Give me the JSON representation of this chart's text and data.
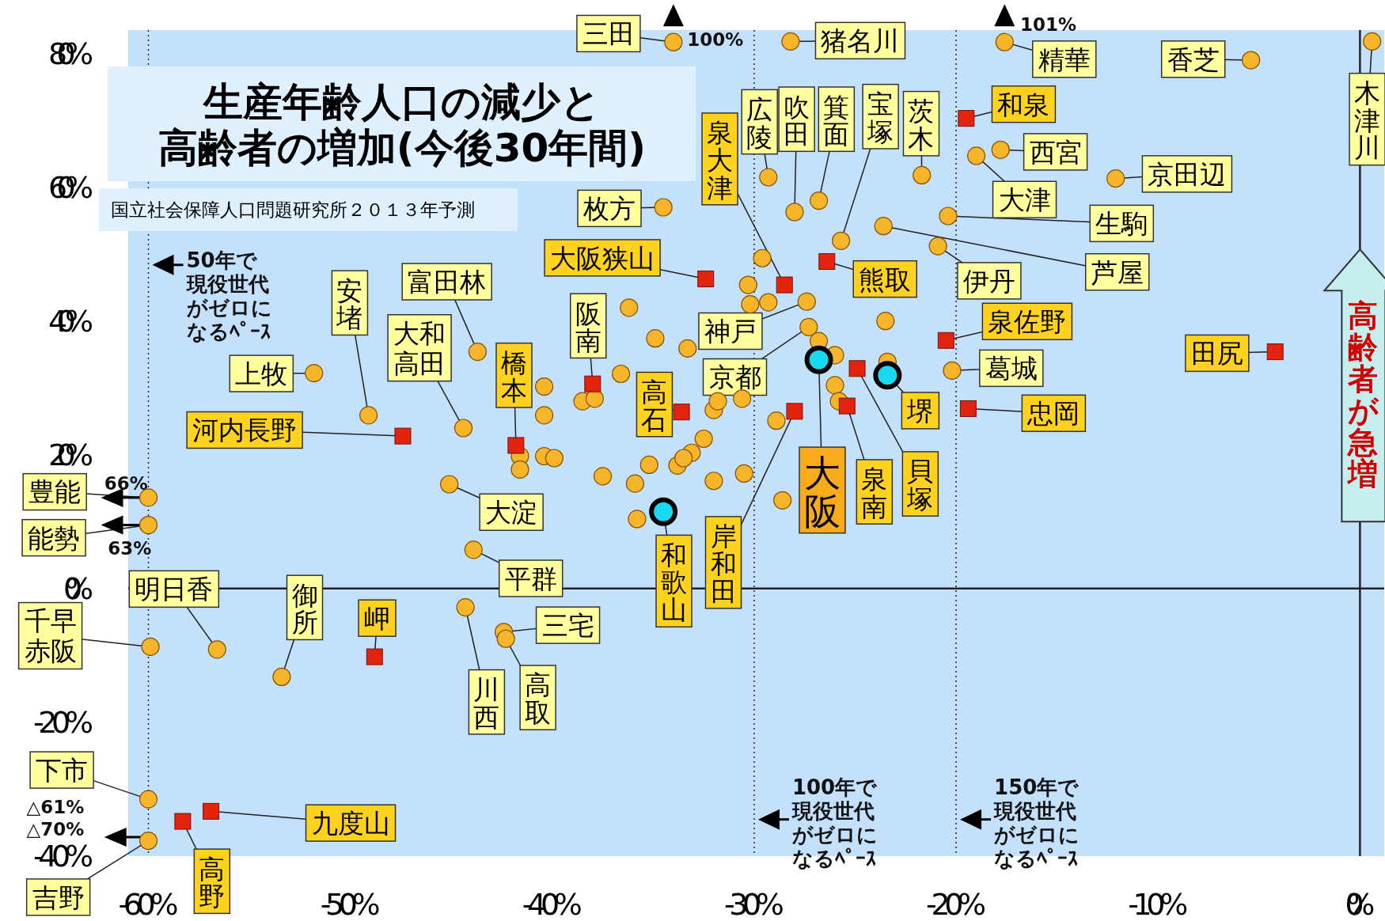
{
  "chart_data": {
    "type": "scatter",
    "title": "生産年齢人口の減少と高齢者の増加(今後30年間)",
    "subtitle": "国立社会保障人口問題研究所２０１３年予測",
    "xlim": [
      -61,
      1.2
    ],
    "ylim": [
      -40,
      83.5
    ],
    "xticks": [
      {
        "value": -60,
        "label": "-60%"
      },
      {
        "value": -50,
        "label": "-50%"
      },
      {
        "value": -40,
        "label": "-40%"
      },
      {
        "value": -30,
        "label": "-30%"
      },
      {
        "value": -20,
        "label": "-20%"
      },
      {
        "value": -10,
        "label": "-10%"
      },
      {
        "value": 0,
        "label": "0%"
      }
    ],
    "yticks": [
      {
        "value": -40,
        "label": "-40%"
      },
      {
        "value": -20,
        "label": "-20%"
      },
      {
        "value": 0,
        "label": "0%"
      },
      {
        "value": 20,
        "label": "20%"
      },
      {
        "value": 40,
        "label": "40%"
      },
      {
        "value": 60,
        "label": "60%"
      },
      {
        "value": 80,
        "label": "80%"
      }
    ],
    "grid": false,
    "series": [
      {
        "color": "#f7b52c",
        "marker": "circle",
        "x": [
          -34.0,
          -28.2,
          -17.6,
          -5.4,
          0.6,
          -29.3,
          -28.0,
          -26.8,
          -25.7,
          -21.7,
          -17.8,
          -19.0,
          -12.1,
          -20.4,
          -23.6,
          -20.9,
          -34.5,
          -20.2,
          -43.7,
          -49.1,
          -44.4,
          -51.8,
          -27.4,
          -27.3,
          -45.1,
          -60,
          -60,
          -43.9,
          -56.6,
          -53.4,
          -59.9,
          -42.4,
          -42.3,
          -44.3,
          -60,
          -60,
          -40.4,
          -40.4,
          -40.4,
          -39.9,
          -41.6,
          -41.6,
          -37.5,
          -35.9,
          -35.2,
          -33.8,
          -33.1,
          -32.5,
          -32.0,
          -30.5,
          -32.0,
          -31.8,
          -30.6,
          -30.3,
          -30.2,
          -29.6,
          -29.3,
          -26.8,
          -26.0,
          -26.0,
          -25.8,
          -28.9,
          -28.6,
          -35.8,
          -36.2,
          -34.9,
          -36.6,
          -38.5,
          -37.9,
          -33.3,
          -23.5,
          -23.4,
          -33.5
        ],
        "values": [
          81.7,
          81.8,
          81.7,
          79.0,
          81.8,
          61.5,
          56.3,
          58.0,
          52.0,
          61.8,
          65.6,
          64.7,
          61.3,
          55.7,
          54.2,
          51.2,
          57.0,
          32.6,
          35.4,
          25.9,
          24.0,
          32.2,
          42.9,
          39.1,
          15.6,
          13.6,
          9.5,
          5.8,
          -9.1,
          -13.2,
          -8.7,
          -6.5,
          -7.5,
          -2.8,
          -31.5,
          -37.7,
          30.2,
          25.9,
          19.8,
          19.5,
          19.8,
          17.8,
          16.8,
          15.7,
          18.5,
          18.4,
          20.3,
          22.4,
          16.1,
          17.2,
          26.7,
          28.0,
          28.4,
          45.4,
          42.5,
          49.4,
          42.8,
          37.0,
          34.9,
          30.4,
          28.0,
          25.1,
          13.2,
          10.4,
          42.0,
          37.4,
          32.1,
          28.0,
          28.4,
          35.9,
          40.0,
          33.9,
          19.5
        ]
      },
      {
        "color": "#e2230e",
        "marker": "square",
        "x": [
          -19.5,
          -28.5,
          -32.4,
          -26.4,
          -20.5,
          -19.4,
          -4.2,
          -38.0,
          -41.8,
          -33.6,
          -25.4,
          -24.9,
          -28.0,
          -47.4,
          -48.8,
          -56.9,
          -58.3
        ],
        "values": [
          70.3,
          45.4,
          46.3,
          48.9,
          37.1,
          26.9,
          35.4,
          30.6,
          21.4,
          26.4,
          27.3,
          32.9,
          26.5,
          22.8,
          -10.2,
          -33.3,
          -34.8
        ]
      },
      {
        "color": "#19d9f0",
        "marker": "circle",
        "x": [
          -26.8,
          -23.4,
          -34.5
        ],
        "values": [
          34.2,
          31.9,
          11.5
        ]
      }
    ],
    "ref_lines": [
      {
        "axis": "x",
        "value": -60,
        "label": "50年で現役世代がゼロになるﾍﾟｰｽ",
        "line_style": "dotted"
      },
      {
        "axis": "x",
        "value": -30,
        "label": "100年で現役世代がゼロになるﾍﾟｰｽ",
        "line_style": "dotted"
      },
      {
        "axis": "x",
        "value": -20,
        "label": "150年で現役世代がゼロになるﾍﾟｰｽ",
        "line_style": "dotted"
      },
      {
        "axis": "x",
        "value": 0,
        "line_style": "solid"
      },
      {
        "axis": "y",
        "value": 0,
        "line_style": "solid"
      }
    ],
    "annotations": [
      {
        "text": "三田",
        "x": -34.0,
        "y": 81.7
      },
      {
        "text": "猪名川",
        "x": -28.2,
        "y": 81.8
      },
      {
        "text": "精華",
        "x": -17.6,
        "y": 81.7
      },
      {
        "text": "香芝",
        "x": -5.4,
        "y": 79.0
      },
      {
        "text": "木津川",
        "x": 0.6,
        "y": 81.8
      },
      {
        "text": "広陵",
        "x": -29.3,
        "y": 61.5
      },
      {
        "text": "吹田",
        "x": -28.0,
        "y": 56.3
      },
      {
        "text": "箕面",
        "x": -26.8,
        "y": 58.0
      },
      {
        "text": "宝塚",
        "x": -25.7,
        "y": 52.0
      },
      {
        "text": "茨木",
        "x": -21.7,
        "y": 61.8
      },
      {
        "text": "和泉",
        "x": -19.5,
        "y": 70.3
      },
      {
        "text": "西宮",
        "x": -17.8,
        "y": 65.6
      },
      {
        "text": "大津",
        "x": -19.0,
        "y": 64.7
      },
      {
        "text": "京田辺",
        "x": -12.1,
        "y": 61.3
      },
      {
        "text": "生駒",
        "x": -20.4,
        "y": 55.7
      },
      {
        "text": "芦屋",
        "x": -23.6,
        "y": 54.2
      },
      {
        "text": "伊丹",
        "x": -20.9,
        "y": 51.2
      },
      {
        "text": "泉大津",
        "x": -28.5,
        "y": 45.4
      },
      {
        "text": "枚方",
        "x": -34.5,
        "y": 57.0
      },
      {
        "text": "大阪狭山",
        "x": -32.4,
        "y": 46.3
      },
      {
        "text": "熊取",
        "x": -26.4,
        "y": 48.9
      },
      {
        "text": "泉佐野",
        "x": -20.5,
        "y": 37.1
      },
      {
        "text": "葛城",
        "x": -20.2,
        "y": 32.6
      },
      {
        "text": "忠岡",
        "x": -19.4,
        "y": 26.9
      },
      {
        "text": "田尻",
        "x": -4.2,
        "y": 35.4
      },
      {
        "text": "富田林",
        "x": -43.7,
        "y": 35.4
      },
      {
        "text": "安堵",
        "x": -49.1,
        "y": 25.9
      },
      {
        "text": "大和高田",
        "x": -44.4,
        "y": 24.0
      },
      {
        "text": "上牧",
        "x": -51.8,
        "y": 32.2
      },
      {
        "text": "河内長野",
        "x": -47.4,
        "y": 22.8
      },
      {
        "text": "阪南",
        "x": -38.0,
        "y": 30.6
      },
      {
        "text": "橋本",
        "x": -41.8,
        "y": 21.4
      },
      {
        "text": "高石",
        "x": -33.6,
        "y": 26.4
      },
      {
        "text": "神戸",
        "x": -27.4,
        "y": 42.9
      },
      {
        "text": "京都",
        "x": -27.3,
        "y": 39.1
      },
      {
        "text": "大阪",
        "x": -26.8,
        "y": 34.2
      },
      {
        "text": "堺",
        "x": -23.4,
        "y": 31.9
      },
      {
        "text": "泉南",
        "x": -25.4,
        "y": 27.3
      },
      {
        "text": "貝塚",
        "x": -24.9,
        "y": 32.9
      },
      {
        "text": "岸和田",
        "x": -28.0,
        "y": 26.5
      },
      {
        "text": "和歌山",
        "x": -34.5,
        "y": 11.5
      },
      {
        "text": "大淀",
        "x": -45.1,
        "y": 15.6
      },
      {
        "text": "豊能",
        "x": -60,
        "y": 13.6
      },
      {
        "text": "能勢",
        "x": -60,
        "y": 9.5
      },
      {
        "text": "平群",
        "x": -43.9,
        "y": 5.8
      },
      {
        "text": "明日香",
        "x": -56.6,
        "y": -9.1
      },
      {
        "text": "御所",
        "x": -53.4,
        "y": -13.2
      },
      {
        "text": "岬",
        "x": -48.8,
        "y": -10.2
      },
      {
        "text": "千早赤阪",
        "x": -59.9,
        "y": -8.7
      },
      {
        "text": "三宅",
        "x": -42.4,
        "y": -6.5
      },
      {
        "text": "高取",
        "x": -42.3,
        "y": -7.5
      },
      {
        "text": "川西",
        "x": -44.3,
        "y": -2.8
      },
      {
        "text": "下市",
        "x": -60,
        "y": -31.5
      },
      {
        "text": "吉野",
        "x": -60,
        "y": -37.7
      },
      {
        "text": "九度山",
        "x": -56.9,
        "y": -33.3
      },
      {
        "text": "高野",
        "x": -58.3,
        "y": -34.8
      },
      {
        "text": "100%",
        "x": -34.0,
        "y": 81.7
      },
      {
        "text": "101%",
        "x": -17.6,
        "y": 81.7
      },
      {
        "text": "66%",
        "x": -60,
        "y": 13.6
      },
      {
        "text": "63%",
        "x": -60,
        "y": 9.5
      },
      "△61%",
      "△70%",
      {
        "text": "高齢者が急増",
        "x": 0,
        "y": 50.7
      }
    ]
  }
}
